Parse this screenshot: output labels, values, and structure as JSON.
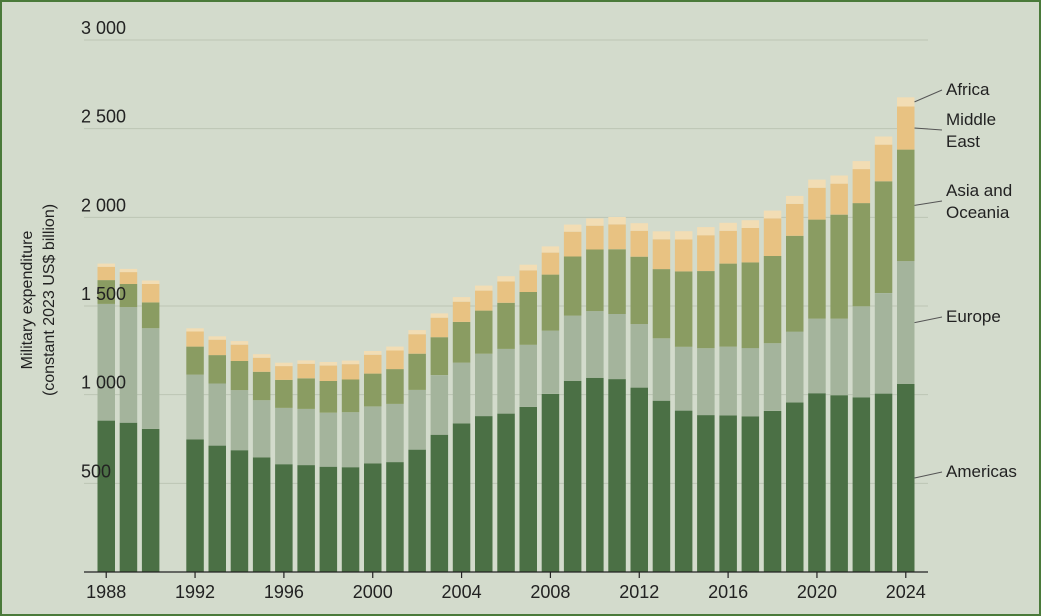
{
  "chart_data": {
    "type": "bar",
    "stacked": true,
    "ylabel_line1": "Military expenditure",
    "ylabel_line2": "(constant 2023 US$ billion)",
    "ylim": [
      0,
      3000
    ],
    "yticks": [
      500,
      1000,
      1500,
      2000,
      2500,
      3000
    ],
    "ytick_labels": [
      "500",
      "1 000",
      "1 500",
      "2 000",
      "2 500",
      "3 000"
    ],
    "xlim": [
      1987,
      2025
    ],
    "xticks": [
      1988,
      1992,
      1996,
      2000,
      2004,
      2008,
      2012,
      2016,
      2020,
      2024
    ],
    "xtick_labels": [
      "1988",
      "1992",
      "1996",
      "2000",
      "2004",
      "2008",
      "2012",
      "2016",
      "2020",
      "2024"
    ],
    "grid": "horizontal",
    "legend_position": "right",
    "x": [
      1988,
      1989,
      1990,
      1992,
      1993,
      1994,
      1995,
      1996,
      1997,
      1998,
      1999,
      2000,
      2001,
      2002,
      2003,
      2004,
      2005,
      2006,
      2007,
      2008,
      2009,
      2010,
      2011,
      2012,
      2013,
      2014,
      2015,
      2016,
      2017,
      2018,
      2019,
      2020,
      2021,
      2022,
      2023,
      2024
    ],
    "series": [
      {
        "name": "Americas",
        "color": "#4b7045",
        "values": [
          854,
          842,
          807,
          747,
          713,
          687,
          646,
          608,
          603,
          594,
          591,
          612,
          620,
          690,
          774,
          838,
          879,
          893,
          931,
          1004,
          1078,
          1095,
          1088,
          1040,
          966,
          910,
          885,
          883,
          878,
          908,
          956,
          1008,
          997,
          985,
          1006,
          1060
        ]
      },
      {
        "name": "Europe",
        "color": "#a4b49c",
        "values": [
          658,
          652,
          568,
          366,
          350,
          339,
          323,
          317,
          317,
          304,
          310,
          322,
          328,
          337,
          336,
          343,
          352,
          365,
          350,
          357,
          368,
          376,
          367,
          358,
          352,
          360,
          377,
          388,
          385,
          382,
          400,
          421,
          432,
          513,
          567,
          693
        ]
      },
      {
        "name": "Asia and Oceania",
        "color": "#8a9c62",
        "values": [
          134,
          130,
          145,
          158,
          160,
          164,
          160,
          158,
          172,
          179,
          185,
          185,
          196,
          204,
          214,
          229,
          243,
          260,
          298,
          316,
          333,
          348,
          365,
          380,
          390,
          425,
          435,
          468,
          483,
          492,
          540,
          558,
          586,
          582,
          630,
          629
        ]
      },
      {
        "name": "Middle East",
        "color": "#e8c282",
        "values": [
          75,
          67,
          104,
          85,
          87,
          92,
          79,
          78,
          82,
          87,
          86,
          106,
          105,
          110,
          110,
          114,
          113,
          120,
          122,
          124,
          140,
          134,
          140,
          146,
          168,
          180,
          202,
          185,
          194,
          212,
          180,
          180,
          175,
          192,
          207,
          243
        ]
      },
      {
        "name": "Africa",
        "color": "#f2ddb4",
        "values": [
          18,
          18,
          20,
          18,
          19,
          20,
          20,
          19,
          19,
          20,
          20,
          21,
          22,
          23,
          24,
          26,
          28,
          30,
          32,
          35,
          40,
          41,
          42,
          43,
          45,
          47,
          46,
          45,
          44,
          44,
          45,
          46,
          46,
          45,
          46,
          52
        ]
      }
    ],
    "legend": [
      "Africa",
      "Middle East",
      "Asia and Oceania",
      "Europe",
      "Americas"
    ]
  }
}
